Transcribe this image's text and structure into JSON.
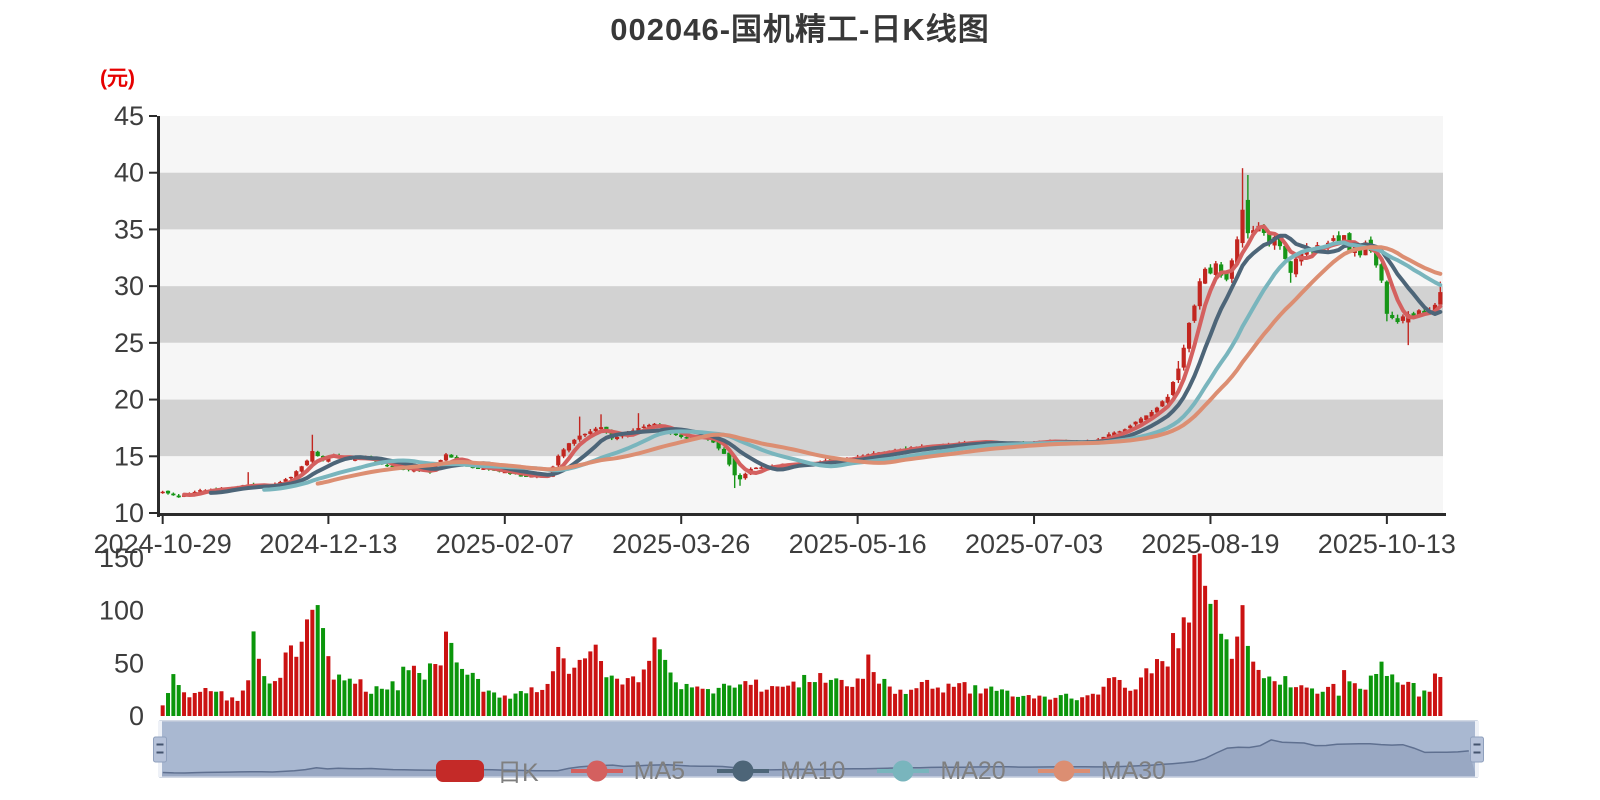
{
  "title": "002046-国机精工-日K线图",
  "price_axis": {
    "unit": "(元)",
    "ticks": [
      45,
      40,
      35,
      30,
      25,
      20,
      15,
      10
    ],
    "min": 10,
    "max": 45
  },
  "volume_axis": {
    "ticks": [
      150,
      100,
      50,
      0
    ],
    "min": 0,
    "max": 150
  },
  "x_axis": {
    "tick_labels": [
      "2024-10-29",
      "2024-12-13",
      "2025-02-07",
      "2025-03-26",
      "2025-05-16",
      "2025-07-03",
      "2025-08-19",
      "2025-10-13"
    ],
    "tick_day_index": [
      0,
      31,
      64,
      97,
      130,
      163,
      196,
      229
    ]
  },
  "legend": {
    "items": [
      {
        "label": "日K",
        "type": "rect",
        "color": "#c42a28"
      },
      {
        "label": "MA5",
        "type": "line",
        "color": "#d4605f"
      },
      {
        "label": "MA10",
        "type": "line",
        "color": "#4d6578"
      },
      {
        "label": "MA20",
        "type": "line",
        "color": "#79b5bd"
      },
      {
        "label": "MA30",
        "type": "line",
        "color": "#dc8e72"
      }
    ]
  },
  "colors": {
    "candle_up": "#c22620",
    "candle_down": "#169517",
    "vol_up": "#cb1212",
    "vol_down": "#0b960b",
    "ma5": "#d4605f",
    "ma10": "#4d6578",
    "ma20": "#79b5bd",
    "ma30": "#dc8e72",
    "stripe_gray": "#d2d2d2",
    "stripe_light": "#f6f6f6",
    "axis_line": "#2b2b2b",
    "axis_text": "#3d3d3d",
    "title_text": "#383838",
    "unit_text": "#e60000",
    "legend_text": "#7f7f7f",
    "nav_fill": "#a9b8d1",
    "nav_border": "#c2cbdc",
    "nav_line": "#5f7090",
    "nav_area": "rgba(95,112,144,0.22)",
    "nav_track": "#eef1f7",
    "handle_fill": "#b6c2d9",
    "handle_stroke": "#8fa0bd",
    "handle_grip": "#44546e"
  },
  "chart_data": {
    "type": "candlestick",
    "title": "002046-国机精工-日K线图",
    "ylabel": "(元)",
    "ylim": [
      10,
      45
    ],
    "vol_ylim": [
      0,
      150
    ],
    "x_range_days": 240,
    "x_tick_labels": [
      "2024-10-29",
      "2024-12-13",
      "2025-02-07",
      "2025-03-26",
      "2025-05-16",
      "2025-07-03",
      "2025-08-19",
      "2025-10-13"
    ],
    "legend_entries": [
      "日K",
      "MA5",
      "MA10",
      "MA20",
      "MA30"
    ],
    "series": [
      {
        "name": "日K",
        "type": "candlestick",
        "note": "daily OHLC generated from close_keypoints plus special_days overrides"
      },
      {
        "name": "MA5",
        "type": "line",
        "derived": "5-day moving average of close"
      },
      {
        "name": "MA10",
        "type": "line",
        "derived": "10-day moving average of close"
      },
      {
        "name": "MA20",
        "type": "line",
        "derived": "20-day moving average of close"
      },
      {
        "name": "MA30",
        "type": "line",
        "derived": "30-day moving average of close"
      }
    ],
    "close_keypoints": [
      [
        0,
        11.9
      ],
      [
        3,
        11.4
      ],
      [
        7,
        12.0
      ],
      [
        12,
        12.2
      ],
      [
        16,
        12.5
      ],
      [
        20,
        12.3
      ],
      [
        24,
        13.2
      ],
      [
        27,
        14.6
      ],
      [
        28,
        15.5
      ],
      [
        30,
        14.6
      ],
      [
        32,
        15.2
      ],
      [
        35,
        14.7
      ],
      [
        38,
        14.9
      ],
      [
        42,
        14.1
      ],
      [
        45,
        13.9
      ],
      [
        50,
        13.6
      ],
      [
        53,
        15.2
      ],
      [
        56,
        14.3
      ],
      [
        60,
        13.9
      ],
      [
        64,
        13.6
      ],
      [
        67,
        13.3
      ],
      [
        72,
        13.2
      ],
      [
        74,
        15.0
      ],
      [
        76,
        16.2
      ],
      [
        78,
        16.8
      ],
      [
        80,
        17.2
      ],
      [
        82,
        17.6
      ],
      [
        84,
        16.6
      ],
      [
        86,
        16.9
      ],
      [
        89,
        17.5
      ],
      [
        92,
        17.9
      ],
      [
        95,
        17.0
      ],
      [
        98,
        16.6
      ],
      [
        101,
        16.8
      ],
      [
        103,
        16.2
      ],
      [
        105,
        15.2
      ],
      [
        107,
        13.3
      ],
      [
        108,
        13.0
      ],
      [
        110,
        13.9
      ],
      [
        113,
        14.1
      ],
      [
        116,
        14.3
      ],
      [
        120,
        14.3
      ],
      [
        124,
        14.6
      ],
      [
        128,
        14.8
      ],
      [
        131,
        15.1
      ],
      [
        134,
        15.3
      ],
      [
        138,
        15.6
      ],
      [
        142,
        15.9
      ],
      [
        146,
        16.0
      ],
      [
        150,
        16.2
      ],
      [
        154,
        16.3
      ],
      [
        157,
        15.9
      ],
      [
        160,
        16.1
      ],
      [
        163,
        16.3
      ],
      [
        167,
        16.3
      ],
      [
        171,
        16.1
      ],
      [
        175,
        16.5
      ],
      [
        178,
        17.1
      ],
      [
        180,
        17.4
      ],
      [
        182,
        18.0
      ],
      [
        184,
        18.6
      ],
      [
        186,
        19.3
      ],
      [
        188,
        20.3
      ],
      [
        190,
        22.8
      ],
      [
        191,
        24.5
      ],
      [
        192,
        26.8
      ],
      [
        193,
        28.3
      ],
      [
        194,
        30.4
      ],
      [
        195,
        31.6
      ],
      [
        196,
        31.2
      ],
      [
        197,
        32.0
      ],
      [
        198,
        31.0
      ],
      [
        199,
        30.6
      ],
      [
        200,
        32.3
      ],
      [
        201,
        34.2
      ],
      [
        202,
        36.7
      ],
      [
        203,
        34.6
      ],
      [
        204,
        34.9
      ],
      [
        205,
        35.3
      ],
      [
        206,
        34.6
      ],
      [
        207,
        33.8
      ],
      [
        208,
        34.3
      ],
      [
        209,
        33.6
      ],
      [
        210,
        32.3
      ],
      [
        211,
        31.2
      ],
      [
        212,
        32.4
      ],
      [
        213,
        33.0
      ],
      [
        214,
        33.4
      ],
      [
        215,
        33.2
      ],
      [
        216,
        33.6
      ],
      [
        217,
        33.3
      ],
      [
        218,
        33.9
      ],
      [
        219,
        34.2
      ],
      [
        220,
        33.7
      ],
      [
        221,
        34.4
      ],
      [
        222,
        33.2
      ],
      [
        223,
        33.6
      ],
      [
        224,
        32.8
      ],
      [
        225,
        33.9
      ],
      [
        226,
        33.0
      ],
      [
        227,
        31.9
      ],
      [
        228,
        30.5
      ],
      [
        229,
        27.6
      ],
      [
        230,
        27.2
      ],
      [
        231,
        26.9
      ],
      [
        232,
        27.4
      ],
      [
        233,
        27.5
      ],
      [
        234,
        27.3
      ],
      [
        235,
        27.8
      ],
      [
        236,
        27.5
      ],
      [
        237,
        27.9
      ],
      [
        238,
        28.3
      ],
      [
        239,
        29.4
      ]
    ],
    "special_days": [
      {
        "i": 16,
        "h": 13.6
      },
      {
        "i": 28,
        "h": 16.9
      },
      {
        "i": 78,
        "h": 18.5
      },
      {
        "i": 82,
        "h": 18.7
      },
      {
        "i": 89,
        "h": 18.8
      },
      {
        "i": 107,
        "o": 14.9,
        "l": 12.2
      },
      {
        "i": 108,
        "l": 12.4
      },
      {
        "i": 190,
        "h": 23.4
      },
      {
        "i": 202,
        "o": 33.8,
        "h": 40.4,
        "l": 33.4
      },
      {
        "i": 203,
        "o": 37.6,
        "h": 39.8,
        "l": 34.2
      },
      {
        "i": 211,
        "l": 30.3
      },
      {
        "i": 229,
        "o": 30.4,
        "l": 26.9
      },
      {
        "i": 233,
        "o": 26.8,
        "h": 27.8,
        "l": 24.8
      },
      {
        "i": 239,
        "h": 30.4
      }
    ],
    "volume_keypoints": [
      [
        0,
        10
      ],
      [
        2,
        36
      ],
      [
        5,
        15
      ],
      [
        8,
        26
      ],
      [
        11,
        20
      ],
      [
        14,
        14
      ],
      [
        16,
        30
      ],
      [
        17,
        87
      ],
      [
        18,
        52
      ],
      [
        20,
        26
      ],
      [
        23,
        52
      ],
      [
        26,
        70
      ],
      [
        29,
        95
      ],
      [
        31,
        50
      ],
      [
        33,
        36
      ],
      [
        35,
        34
      ],
      [
        37,
        30
      ],
      [
        40,
        24
      ],
      [
        44,
        30
      ],
      [
        46,
        48
      ],
      [
        49,
        40
      ],
      [
        51,
        45
      ],
      [
        53,
        72
      ],
      [
        55,
        45
      ],
      [
        58,
        36
      ],
      [
        61,
        24
      ],
      [
        64,
        19
      ],
      [
        67,
        22
      ],
      [
        70,
        26
      ],
      [
        72,
        30
      ],
      [
        74,
        70
      ],
      [
        76,
        44
      ],
      [
        78,
        45
      ],
      [
        80,
        55
      ],
      [
        81,
        65
      ],
      [
        83,
        44
      ],
      [
        85,
        30
      ],
      [
        87,
        33
      ],
      [
        90,
        40
      ],
      [
        93,
        78
      ],
      [
        94,
        56
      ],
      [
        96,
        33
      ],
      [
        99,
        25
      ],
      [
        102,
        24
      ],
      [
        105,
        32
      ],
      [
        107,
        33
      ],
      [
        110,
        30
      ],
      [
        113,
        28
      ],
      [
        116,
        27
      ],
      [
        119,
        30
      ],
      [
        122,
        38
      ],
      [
        125,
        37
      ],
      [
        128,
        29
      ],
      [
        131,
        35
      ],
      [
        132,
        60
      ],
      [
        134,
        32
      ],
      [
        137,
        24
      ],
      [
        140,
        25
      ],
      [
        143,
        34
      ],
      [
        146,
        20
      ],
      [
        148,
        34
      ],
      [
        151,
        24
      ],
      [
        154,
        26
      ],
      [
        157,
        25
      ],
      [
        160,
        18
      ],
      [
        163,
        17
      ],
      [
        166,
        18
      ],
      [
        169,
        19
      ],
      [
        172,
        18
      ],
      [
        175,
        25
      ],
      [
        177,
        30
      ],
      [
        179,
        34
      ],
      [
        181,
        28
      ],
      [
        183,
        34
      ],
      [
        185,
        44
      ],
      [
        187,
        50
      ],
      [
        189,
        66
      ],
      [
        191,
        88
      ],
      [
        193,
        128
      ],
      [
        194,
        133
      ],
      [
        195,
        114
      ],
      [
        196,
        112
      ],
      [
        197,
        94
      ],
      [
        198,
        92
      ],
      [
        199,
        64
      ],
      [
        200,
        60
      ],
      [
        201,
        94
      ],
      [
        202,
        92
      ],
      [
        203,
        80
      ],
      [
        204,
        60
      ],
      [
        205,
        52
      ],
      [
        206,
        40
      ],
      [
        207,
        34
      ],
      [
        208,
        30
      ],
      [
        210,
        34
      ],
      [
        212,
        28
      ],
      [
        214,
        25
      ],
      [
        216,
        22
      ],
      [
        218,
        28
      ],
      [
        220,
        24
      ],
      [
        221,
        42
      ],
      [
        223,
        30
      ],
      [
        225,
        27
      ],
      [
        227,
        40
      ],
      [
        228,
        44
      ],
      [
        229,
        42
      ],
      [
        231,
        30
      ],
      [
        233,
        34
      ],
      [
        235,
        22
      ],
      [
        237,
        28
      ],
      [
        238,
        40
      ],
      [
        239,
        42
      ]
    ]
  }
}
